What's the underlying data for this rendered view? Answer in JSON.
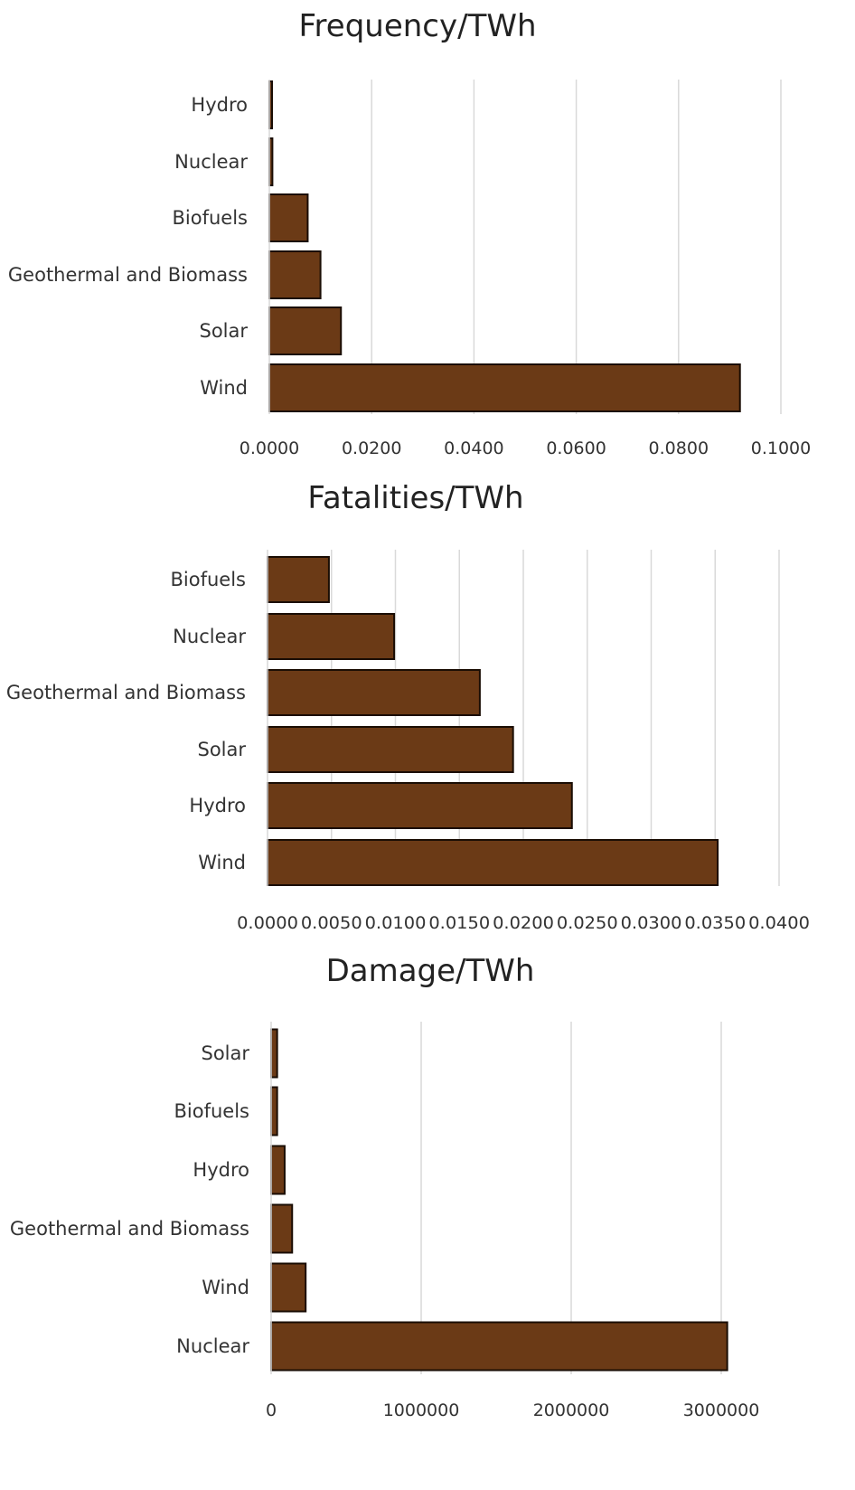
{
  "chart_data": [
    {
      "type": "bar",
      "orientation": "horizontal",
      "title": "Frequency/TWh",
      "xlabel": "",
      "ylabel": "",
      "categories": [
        "Hydro",
        "Nuclear",
        "Biofuels",
        "Geothermal and Biomass",
        "Solar",
        "Wind"
      ],
      "values": [
        0.0002,
        0.0006,
        0.0075,
        0.01,
        0.014,
        0.092
      ],
      "xlim": [
        0,
        0.1
      ],
      "ticks": [
        0,
        0.02,
        0.04,
        0.06,
        0.08,
        0.1
      ],
      "tick_labels": [
        "0.0000",
        "0.0200",
        "0.0400",
        "0.0600",
        "0.0800",
        "0.1000"
      ],
      "grid": true,
      "bar_color": "#6b3a16"
    },
    {
      "type": "bar",
      "orientation": "horizontal",
      "title": "Fatalities/TWh",
      "xlabel": "",
      "ylabel": "",
      "categories": [
        "Biofuels",
        "Nuclear",
        "Geothermal and Biomass",
        "Solar",
        "Hydro",
        "Wind"
      ],
      "values": [
        0.0048,
        0.0099,
        0.0166,
        0.0192,
        0.0238,
        0.0352
      ],
      "xlim": [
        0,
        0.04
      ],
      "ticks": [
        0,
        0.005,
        0.01,
        0.015,
        0.02,
        0.025,
        0.03,
        0.035,
        0.04
      ],
      "tick_labels": [
        "0.0000",
        "0.0050",
        "0.0100",
        "0.0150",
        "0.0200",
        "0.0250",
        "0.0300",
        "0.0350",
        "0.0400"
      ],
      "grid": true,
      "bar_color": "#6b3a16"
    },
    {
      "type": "bar",
      "orientation": "horizontal",
      "title": "Damage/TWh",
      "xlabel": "",
      "ylabel": "",
      "categories": [
        "Solar",
        "Biofuels",
        "Hydro",
        "Geothermal and Biomass",
        "Wind",
        "Nuclear"
      ],
      "values": [
        40000,
        40000,
        90000,
        140000,
        230000,
        3040000
      ],
      "xlim": [
        0,
        3000000
      ],
      "ticks": [
        0,
        1000000,
        2000000,
        3000000
      ],
      "tick_labels": [
        "0",
        "1000000",
        "2000000",
        "3000000"
      ],
      "grid": true,
      "bar_color": "#6b3a16"
    }
  ]
}
